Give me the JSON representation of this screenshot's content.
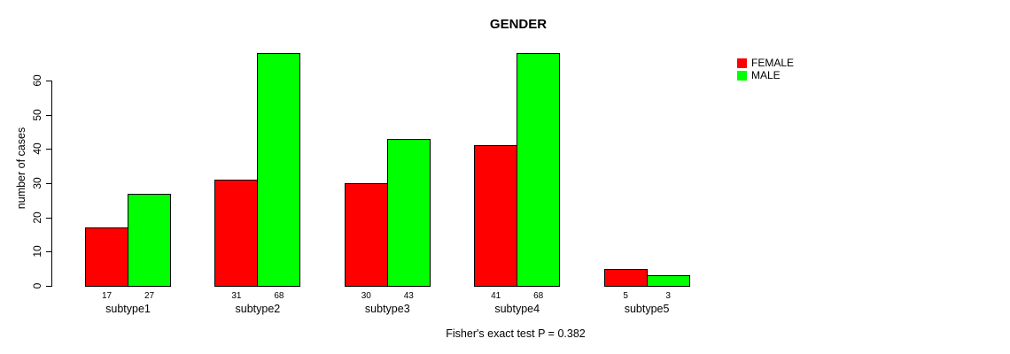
{
  "figure": {
    "title": "GENDER",
    "ylabel": "number of cases",
    "caption": "Fisher's exact test P = 0.382"
  },
  "legend": {
    "position": "right",
    "items": [
      {
        "label": "FEMALE",
        "color": "#ff0000"
      },
      {
        "label": "MALE",
        "color": "#00ff00"
      }
    ]
  },
  "chart_data": {
    "type": "bar",
    "grouped": true,
    "title": "GENDER",
    "xlabel": "",
    "ylabel": "number of cases",
    "categories": [
      "subtype1",
      "subtype2",
      "subtype3",
      "subtype4",
      "subtype5"
    ],
    "series": [
      {
        "name": "FEMALE",
        "color": "#ff0000",
        "values": [
          17,
          31,
          30,
          41,
          5
        ]
      },
      {
        "name": "MALE",
        "color": "#00ff00",
        "values": [
          27,
          68,
          43,
          68,
          3
        ]
      }
    ],
    "bar_value_labels": [
      [
        17,
        27
      ],
      [
        31,
        68
      ],
      [
        30,
        43
      ],
      [
        41,
        68
      ],
      [
        5,
        3
      ]
    ],
    "y_ticks": [
      0,
      10,
      20,
      30,
      40,
      50,
      60
    ],
    "ylim": [
      0,
      70
    ],
    "grid": false,
    "legend_position": "right",
    "annotation": "Fisher's exact test P = 0.382"
  }
}
